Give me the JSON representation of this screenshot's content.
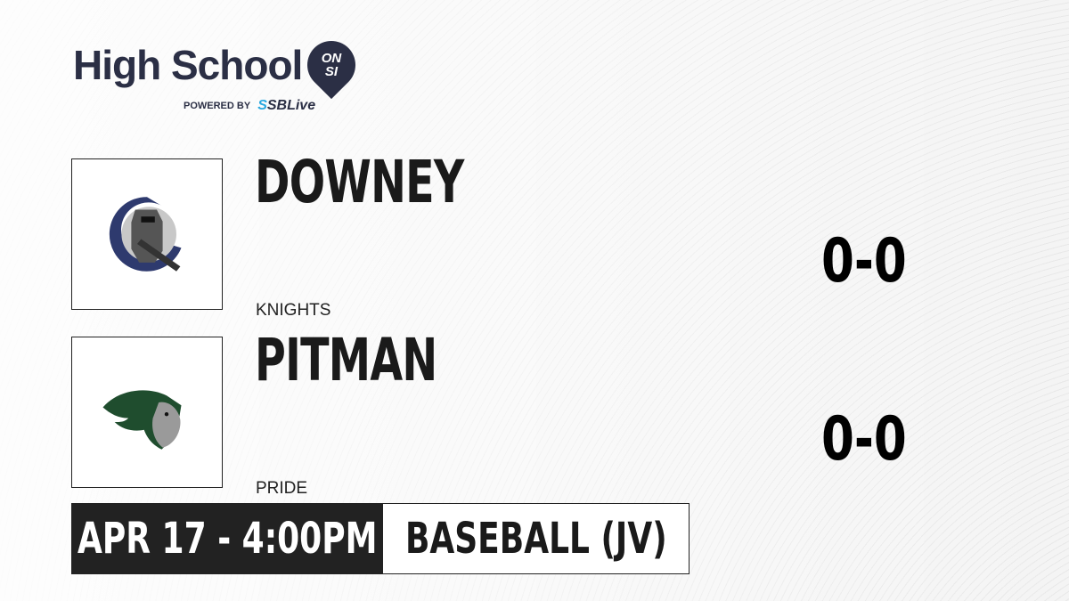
{
  "brand": {
    "title": "High School",
    "badge_top": "ON",
    "badge_bottom": "SI",
    "powered_by": "POWERED BY",
    "partner_prefix": "S",
    "partner": "SBLive"
  },
  "teams": [
    {
      "name": "DOWNEY",
      "mascot": "KNIGHTS",
      "score": "0-0",
      "logo_icon": "knight-logo"
    },
    {
      "name": "PITMAN",
      "mascot": "PRIDE",
      "score": "0-0",
      "logo_icon": "lion-logo"
    }
  ],
  "game": {
    "datetime": "APR 17 - 4:00PM",
    "sport": "BASEBALL (JV)"
  },
  "colors": {
    "brand_navy": "#2b2f45",
    "partner_blue": "#2aa8e0",
    "dark_bar": "#222222"
  }
}
